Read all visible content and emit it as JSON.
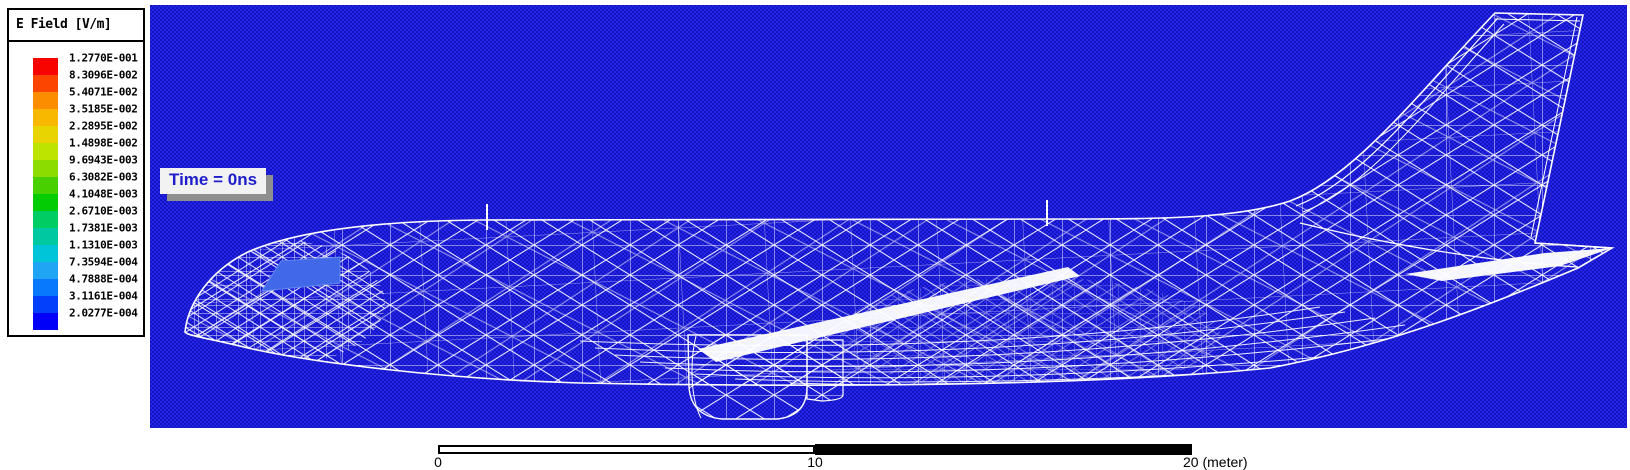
{
  "legend": {
    "title": "E Field [V/m]",
    "entries": [
      {
        "value": "1.2770E-001",
        "color": "#f80400"
      },
      {
        "value": "8.3096E-002",
        "color": "#fc4600"
      },
      {
        "value": "5.4071E-002",
        "color": "#fc8c00"
      },
      {
        "value": "3.5185E-002",
        "color": "#f8b800"
      },
      {
        "value": "2.2895E-002",
        "color": "#e8d400"
      },
      {
        "value": "1.4898E-002",
        "color": "#bce400"
      },
      {
        "value": "9.6943E-003",
        "color": "#8cdc00"
      },
      {
        "value": "6.3082E-003",
        "color": "#48d000"
      },
      {
        "value": "4.1048E-003",
        "color": "#04cc04"
      },
      {
        "value": "2.6710E-003",
        "color": "#00cc64"
      },
      {
        "value": "1.7381E-003",
        "color": "#00c8a0"
      },
      {
        "value": "1.1310E-003",
        "color": "#00c4d8"
      },
      {
        "value": "7.3594E-004",
        "color": "#20a4f4"
      },
      {
        "value": "4.7888E-004",
        "color": "#0878fc"
      },
      {
        "value": "3.1161E-004",
        "color": "#0340fc"
      },
      {
        "value": "2.0277E-004",
        "color": "#0000f8"
      }
    ]
  },
  "plot": {
    "time_label": "Time = 0ns",
    "background_color": "#1c1cd6",
    "mesh_color": "#ffffff",
    "model": "aircraft wireframe mesh"
  },
  "scale_bar": {
    "ticks": [
      "0",
      "10",
      "20 (meter)"
    ]
  }
}
